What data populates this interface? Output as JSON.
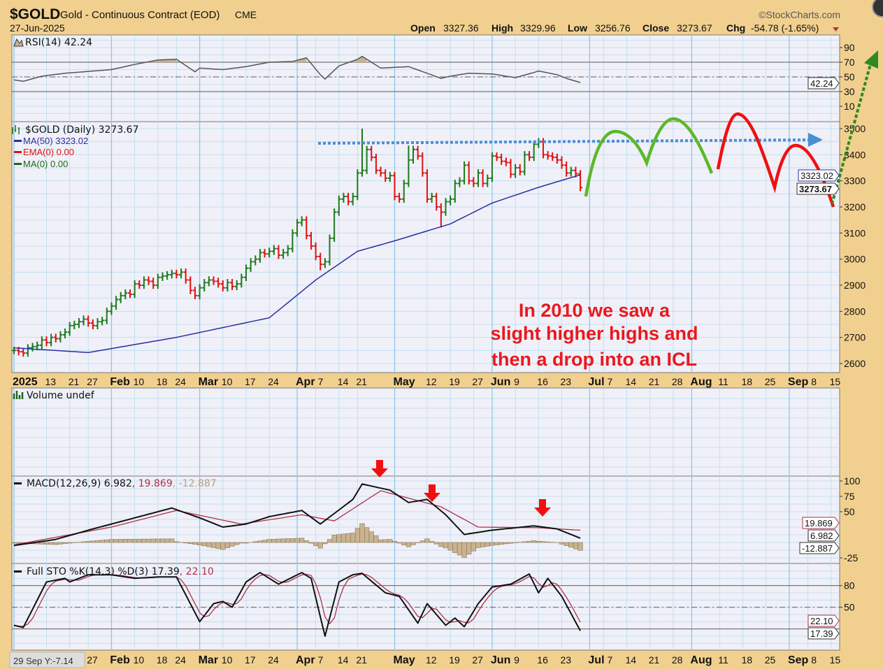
{
  "header": {
    "symbol": "$GOLD",
    "name": "Gold - Continuous Contract (EOD)",
    "exchange": "CME",
    "date": "27-Jun-2025",
    "watermark": "©StockCharts.com",
    "open_label": "Open",
    "open": "3327.36",
    "high_label": "High",
    "high": "3329.96",
    "low_label": "Low",
    "low": "3256.76",
    "close_label": "Close",
    "close": "3273.67",
    "chg_label": "Chg",
    "chg": "-54.78 (-1.65%)",
    "chg_direction": "down"
  },
  "colors": {
    "background": "#f1d08f",
    "plot": "#f0f0f8",
    "up_bar": "#1a7a1a",
    "down_bar": "#e01010",
    "ma50": "#2b2fa0",
    "macd": "#111111",
    "signal": "#b0304a",
    "histogram": "#c9b28f",
    "annotation_red": "#e8191e",
    "annotation_green": "#5cb82a",
    "annotation_blue": "#4a8fd6"
  },
  "panels": {
    "rsi": {
      "legend": "RSI(14) 42.24",
      "last_tag": "42.24",
      "axis": [
        "90",
        "70",
        "50",
        "30",
        "10"
      ]
    },
    "price": {
      "legend": "$GOLD (Daily) 3273.67",
      "ma50_legend": "MA(50) 3323.02",
      "ema_legend": "EMA(0) 0.00",
      "ma0_legend": "MA(0) 0.00",
      "ma_tag": "3323.02",
      "close_tag": "3273.67",
      "axis": [
        "3500",
        "3400",
        "3300",
        "3200",
        "3100",
        "3000",
        "2900",
        "2800",
        "2700",
        "2600"
      ]
    },
    "volume": {
      "legend": "Volume undef"
    },
    "macd": {
      "legend_main": "MACD(12,26,9) 6.982",
      "legend_signal": ", 19.869",
      "legend_hist": ", -12.887",
      "tag_signal": "19.869",
      "tag_macd": "6.982",
      "tag_hist": "-12.887",
      "axis": [
        "100",
        "75",
        "50",
        "-25"
      ]
    },
    "sto": {
      "legend_main": "Full STO %K(14,3) %D(3) 17.39",
      "legend_d": ", 22.10",
      "tag_k": "17.39",
      "tag_d": "22.10",
      "axis": [
        "80",
        "50"
      ]
    }
  },
  "crosshair_readout": "29 Sep Y:-7.14",
  "annotation_text": [
    "In 2010 we saw a",
    "slight higher highs and",
    "then a drop into an ICL"
  ],
  "chart_data": {
    "type": "ohlc-bar",
    "symbol": "$GOLD",
    "period": "Daily",
    "x_range": [
      "2025-01-02",
      "2025-09-19"
    ],
    "price_ylim": [
      2570,
      3530
    ],
    "grid": true,
    "x_ticks": [
      {
        "label": "2025",
        "date": "2025-01-02",
        "major": true
      },
      {
        "label": "13",
        "date": "2025-01-13"
      },
      {
        "label": "21",
        "date": "2025-01-21"
      },
      {
        "label": "27",
        "date": "2025-01-27"
      },
      {
        "label": "Feb",
        "date": "2025-02-03",
        "major": true
      },
      {
        "label": "10",
        "date": "2025-02-10"
      },
      {
        "label": "18",
        "date": "2025-02-18"
      },
      {
        "label": "24",
        "date": "2025-02-24"
      },
      {
        "label": "Mar",
        "date": "2025-03-03",
        "major": true
      },
      {
        "label": "10",
        "date": "2025-03-10"
      },
      {
        "label": "17",
        "date": "2025-03-17"
      },
      {
        "label": "24",
        "date": "2025-03-24"
      },
      {
        "label": "Apr",
        "date": "2025-04-01",
        "major": true
      },
      {
        "label": "7",
        "date": "2025-04-07"
      },
      {
        "label": "14",
        "date": "2025-04-14"
      },
      {
        "label": "21",
        "date": "2025-04-21"
      },
      {
        "label": "May",
        "date": "2025-05-01",
        "major": true
      },
      {
        "label": "12",
        "date": "2025-05-12"
      },
      {
        "label": "19",
        "date": "2025-05-19"
      },
      {
        "label": "27",
        "date": "2025-05-27"
      },
      {
        "label": "Jun",
        "date": "2025-06-02",
        "major": true
      },
      {
        "label": "9",
        "date": "2025-06-09"
      },
      {
        "label": "16",
        "date": "2025-06-16"
      },
      {
        "label": "23",
        "date": "2025-06-23"
      },
      {
        "label": "Jul",
        "date": "2025-07-01",
        "major": true
      },
      {
        "label": "7",
        "date": "2025-07-07"
      },
      {
        "label": "14",
        "date": "2025-07-14"
      },
      {
        "label": "21",
        "date": "2025-07-21"
      },
      {
        "label": "28",
        "date": "2025-07-28"
      },
      {
        "label": "Aug",
        "date": "2025-08-01",
        "major": true
      },
      {
        "label": "11",
        "date": "2025-08-11"
      },
      {
        "label": "18",
        "date": "2025-08-18"
      },
      {
        "label": "25",
        "date": "2025-08-25"
      },
      {
        "label": "Sep",
        "date": "2025-09-02",
        "major": true
      },
      {
        "label": "8",
        "date": "2025-09-08"
      },
      {
        "label": "15",
        "date": "2025-09-15"
      }
    ],
    "closes_by_month": [
      {
        "month": "Jan",
        "closes": [
          2650,
          2645,
          2640,
          2660,
          2665,
          2670,
          2690,
          2680,
          2700,
          2695,
          2710,
          2720,
          2745,
          2750,
          2760,
          2770,
          2755,
          2745,
          2760,
          2765,
          2800
        ]
      },
      {
        "month": "Feb",
        "closes": [
          2820,
          2845,
          2860,
          2870,
          2865,
          2905,
          2900,
          2920,
          2915,
          2900,
          2930,
          2935,
          2940,
          2945,
          2940,
          2950,
          2920,
          2880,
          2860
        ]
      },
      {
        "month": "Mar",
        "closes": [
          2890,
          2910,
          2920,
          2915,
          2905,
          2890,
          2910,
          2895,
          2905,
          2930,
          2965,
          2990,
          3000,
          3025,
          3020,
          3030,
          3040,
          3015,
          3025,
          3040,
          3100
        ]
      },
      {
        "month": "Apr",
        "closes": [
          3140,
          3150,
          3090,
          3050,
          3010,
          2980,
          2990,
          3080,
          3180,
          3230,
          3240,
          3220,
          3240,
          3330,
          3340,
          3420,
          3390,
          3340,
          3330,
          3310,
          3320
        ]
      },
      {
        "month": "May",
        "closes": [
          3240,
          3230,
          3290,
          3380,
          3420,
          3395,
          3330,
          3230,
          3240,
          3200,
          3180,
          3220,
          3230,
          3290,
          3300,
          3360,
          3300,
          3290,
          3330,
          3290,
          3310
        ]
      },
      {
        "month": "Jun",
        "closes": [
          3395,
          3390,
          3375,
          3370,
          3325,
          3350,
          3335,
          3400,
          3390,
          3440,
          3450,
          3400,
          3395,
          3390,
          3380,
          3360,
          3330,
          3340,
          3327,
          3274
        ]
      }
    ],
    "notable_highs": [
      {
        "date": "2025-04-22",
        "high": 3500
      },
      {
        "date": "2025-05-06",
        "high": 3435
      },
      {
        "date": "2025-06-13",
        "high": 3452
      }
    ],
    "notable_lows": [
      {
        "date": "2025-04-08",
        "low": 2957
      },
      {
        "date": "2025-05-15",
        "low": 3121
      }
    ],
    "ma50": [
      [
        "2025-01-02",
        2660
      ],
      [
        "2025-01-27",
        2642
      ],
      [
        "2025-02-24",
        2700
      ],
      [
        "2025-03-24",
        2775
      ],
      [
        "2025-04-07",
        2920
      ],
      [
        "2025-04-21",
        3030
      ],
      [
        "2025-05-01",
        3070
      ],
      [
        "2025-05-19",
        3135
      ],
      [
        "2025-06-02",
        3215
      ],
      [
        "2025-06-16",
        3275
      ],
      [
        "2025-06-27",
        3323.02
      ]
    ],
    "rsi": {
      "ylim": [
        0,
        100
      ],
      "overbought": 70,
      "oversold": 30,
      "points": [
        [
          "2025-01-02",
          46
        ],
        [
          "2025-01-06",
          44
        ],
        [
          "2025-01-10",
          51
        ],
        [
          "2025-01-17",
          55
        ],
        [
          "2025-02-03",
          60
        ],
        [
          "2025-02-10",
          67
        ],
        [
          "2025-02-18",
          73
        ],
        [
          "2025-02-24",
          74
        ],
        [
          "2025-02-28",
          57
        ],
        [
          "2025-03-03",
          62
        ],
        [
          "2025-03-10",
          60
        ],
        [
          "2025-03-17",
          64
        ],
        [
          "2025-03-24",
          70
        ],
        [
          "2025-03-31",
          71
        ],
        [
          "2025-04-03",
          76
        ],
        [
          "2025-04-08",
          53
        ],
        [
          "2025-04-09",
          47
        ],
        [
          "2025-04-14",
          65
        ],
        [
          "2025-04-21",
          74
        ],
        [
          "2025-04-22",
          78
        ],
        [
          "2025-04-28",
          62
        ],
        [
          "2025-05-06",
          64
        ],
        [
          "2025-05-12",
          55
        ],
        [
          "2025-05-15",
          48
        ],
        [
          "2025-05-19",
          51
        ],
        [
          "2025-05-23",
          55
        ],
        [
          "2025-06-02",
          54
        ],
        [
          "2025-06-09",
          49
        ],
        [
          "2025-06-13",
          56
        ],
        [
          "2025-06-16",
          58
        ],
        [
          "2025-06-20",
          53
        ],
        [
          "2025-06-24",
          48
        ],
        [
          "2025-06-27",
          42.24
        ]
      ]
    },
    "macd": {
      "ylim": [
        -40,
        110
      ],
      "macd": [
        [
          "2025-01-02",
          -5
        ],
        [
          "2025-01-15",
          5
        ],
        [
          "2025-01-27",
          20
        ],
        [
          "2025-02-10",
          40
        ],
        [
          "2025-02-21",
          56
        ],
        [
          "2025-03-03",
          40
        ],
        [
          "2025-03-10",
          25
        ],
        [
          "2025-03-17",
          30
        ],
        [
          "2025-03-24",
          42
        ],
        [
          "2025-04-02",
          52
        ],
        [
          "2025-04-08",
          30
        ],
        [
          "2025-04-17",
          70
        ],
        [
          "2025-04-22",
          95
        ],
        [
          "2025-04-30",
          85
        ],
        [
          "2025-05-06",
          65
        ],
        [
          "2025-05-12",
          70
        ],
        [
          "2025-05-16",
          45
        ],
        [
          "2025-05-22",
          13
        ],
        [
          "2025-06-02",
          20
        ],
        [
          "2025-06-13",
          27
        ],
        [
          "2025-06-20",
          22
        ],
        [
          "2025-06-27",
          6.982
        ]
      ],
      "signal": [
        [
          "2025-01-02",
          -4
        ],
        [
          "2025-02-03",
          25
        ],
        [
          "2025-02-24",
          52
        ],
        [
          "2025-03-14",
          30
        ],
        [
          "2025-04-02",
          45
        ],
        [
          "2025-04-11",
          35
        ],
        [
          "2025-04-28",
          84
        ],
        [
          "2025-05-15",
          58
        ],
        [
          "2025-05-28",
          25
        ],
        [
          "2025-06-16",
          24
        ],
        [
          "2025-06-27",
          19.869
        ]
      ]
    },
    "stochastic": {
      "ylim": [
        0,
        100
      ],
      "upper": 80,
      "lower": 20,
      "k": [
        [
          "2025-01-02",
          25
        ],
        [
          "2025-01-06",
          22
        ],
        [
          "2025-01-13",
          85
        ],
        [
          "2025-01-17",
          90
        ],
        [
          "2025-01-21",
          85
        ],
        [
          "2025-01-27",
          95
        ],
        [
          "2025-02-03",
          95
        ],
        [
          "2025-02-10",
          90
        ],
        [
          "2025-02-18",
          92
        ],
        [
          "2025-02-24",
          92
        ],
        [
          "2025-03-03",
          30
        ],
        [
          "2025-03-06",
          55
        ],
        [
          "2025-03-10",
          58
        ],
        [
          "2025-03-12",
          50
        ],
        [
          "2025-03-17",
          85
        ],
        [
          "2025-03-20",
          98
        ],
        [
          "2025-03-26",
          82
        ],
        [
          "2025-04-02",
          98
        ],
        [
          "2025-04-04",
          90
        ],
        [
          "2025-04-09",
          10
        ],
        [
          "2025-04-14",
          85
        ],
        [
          "2025-04-17",
          95
        ],
        [
          "2025-04-22",
          97
        ],
        [
          "2025-04-29",
          70
        ],
        [
          "2025-05-02",
          65
        ],
        [
          "2025-05-08",
          28
        ],
        [
          "2025-05-12",
          55
        ],
        [
          "2025-05-16",
          25
        ],
        [
          "2025-05-20",
          35
        ],
        [
          "2025-05-22",
          23
        ],
        [
          "2025-05-28",
          55
        ],
        [
          "2025-06-02",
          78
        ],
        [
          "2025-06-06",
          82
        ],
        [
          "2025-06-12",
          96
        ],
        [
          "2025-06-16",
          70
        ],
        [
          "2025-06-18",
          90
        ],
        [
          "2025-06-23",
          65
        ],
        [
          "2025-06-27",
          17.39
        ]
      ]
    }
  }
}
